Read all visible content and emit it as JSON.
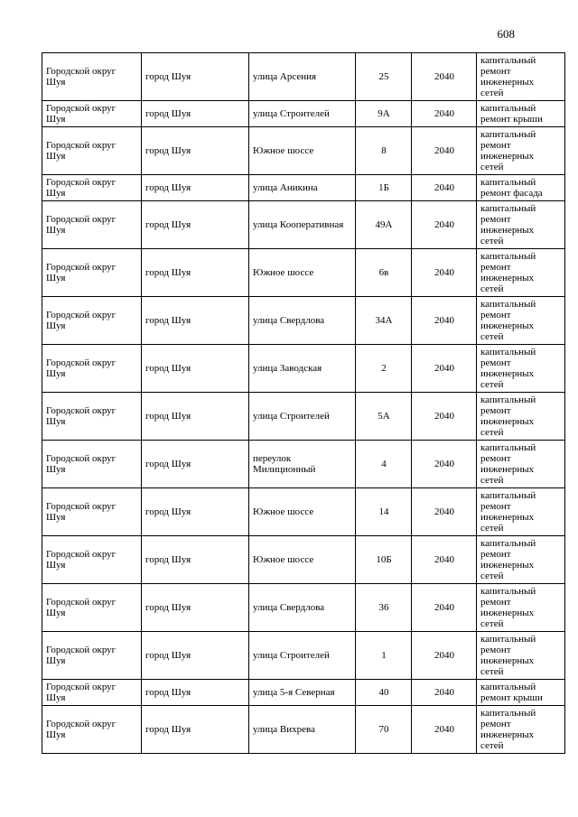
{
  "page": {
    "number": "608"
  },
  "table": {
    "rows": [
      {
        "municipality": "Городской округ Шуя",
        "city": "город Шуя",
        "street": "улица Арсения",
        "house": "25",
        "year": "2040",
        "work": "капитальный ремонт инженерных сетей"
      },
      {
        "municipality": "Городской округ Шуя",
        "city": "город Шуя",
        "street": "улица Строителей",
        "house": "9А",
        "year": "2040",
        "work": "капитальный ремонт крыши"
      },
      {
        "municipality": "Городской округ Шуя",
        "city": "город Шуя",
        "street": "Южное шоссе",
        "house": "8",
        "year": "2040",
        "work": "капитальный ремонт инженерных сетей"
      },
      {
        "municipality": "Городской округ Шуя",
        "city": "город Шуя",
        "street": "улица Аникина",
        "house": "1Б",
        "year": "2040",
        "work": "капитальный ремонт фасада"
      },
      {
        "municipality": "Городской округ Шуя",
        "city": "город Шуя",
        "street": "улица Кооперативная",
        "house": "49А",
        "year": "2040",
        "work": "капитальный ремонт инженерных сетей"
      },
      {
        "municipality": "Городской округ Шуя",
        "city": "город Шуя",
        "street": "Южное шоссе",
        "house": "6в",
        "year": "2040",
        "work": "капитальный ремонт инженерных сетей"
      },
      {
        "municipality": "Городской округ Шуя",
        "city": "город Шуя",
        "street": "улица Свердлова",
        "house": "34А",
        "year": "2040",
        "work": "капитальный ремонт инженерных сетей"
      },
      {
        "municipality": "Городской округ Шуя",
        "city": "город Шуя",
        "street": "улица Заводская",
        "house": "2",
        "year": "2040",
        "work": "капитальный ремонт инженерных сетей"
      },
      {
        "municipality": "Городской округ Шуя",
        "city": "город Шуя",
        "street": "улица Строителей",
        "house": "5А",
        "year": "2040",
        "work": "капитальный ремонт инженерных сетей"
      },
      {
        "municipality": "Городской округ Шуя",
        "city": "город Шуя",
        "street": "переулок Милиционный",
        "house": "4",
        "year": "2040",
        "work": "капитальный ремонт инженерных сетей"
      },
      {
        "municipality": "Городской округ Шуя",
        "city": "город Шуя",
        "street": "Южное шоссе",
        "house": "14",
        "year": "2040",
        "work": "капитальный ремонт инженерных сетей"
      },
      {
        "municipality": "Городской округ Шуя",
        "city": "город Шуя",
        "street": "Южное шоссе",
        "house": "10Б",
        "year": "2040",
        "work": "капитальный ремонт инженерных сетей"
      },
      {
        "municipality": "Городской округ Шуя",
        "city": "город Шуя",
        "street": "улица Свердлова",
        "house": "36",
        "year": "2040",
        "work": "капитальный ремонт инженерных сетей"
      },
      {
        "municipality": "Городской округ Шуя",
        "city": "город Шуя",
        "street": "улица Строителей",
        "house": "1",
        "year": "2040",
        "work": "капитальный ремонт инженерных сетей"
      },
      {
        "municipality": "Городской округ Шуя",
        "city": "город Шуя",
        "street": "улица 5-я Северная",
        "house": "40",
        "year": "2040",
        "work": "капитальный ремонт крыши"
      },
      {
        "municipality": "Городской округ Шуя",
        "city": "город Шуя",
        "street": "улица Вихрева",
        "house": "70",
        "year": "2040",
        "work": "капитальный ремонт инженерных сетей"
      }
    ]
  }
}
